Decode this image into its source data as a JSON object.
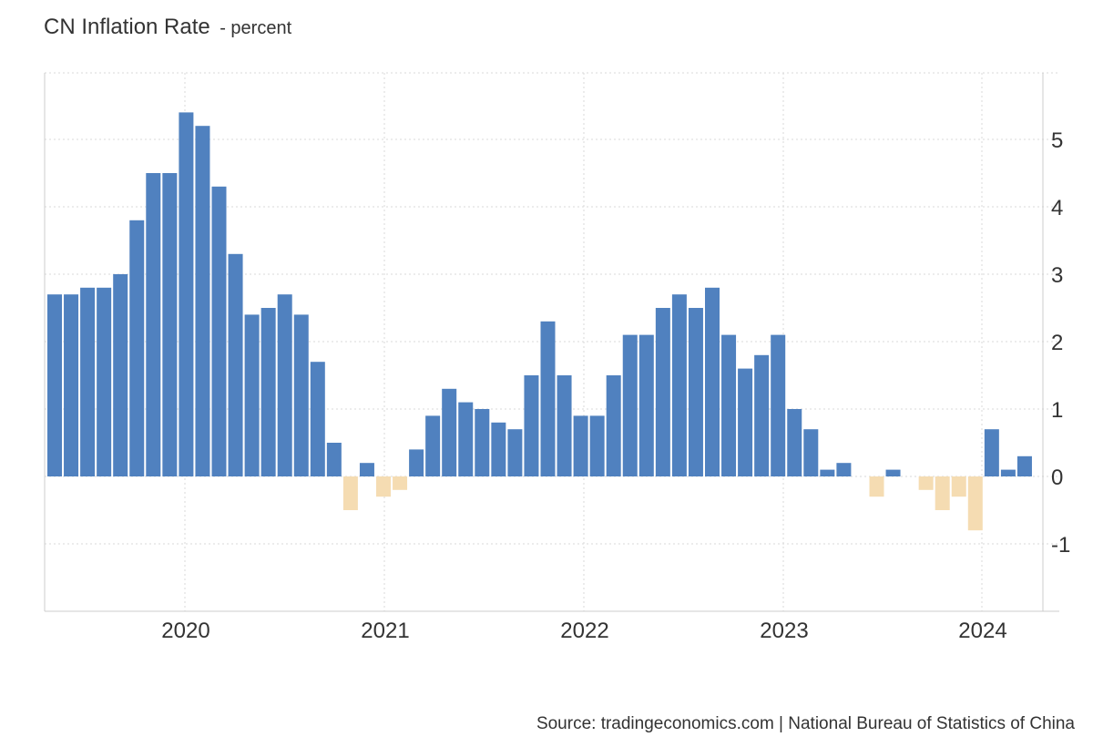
{
  "header": {
    "title": "CN Inflation Rate",
    "subtitle": "- percent"
  },
  "footer": {
    "source": "Source: tradingeconomics.com | National Bureau of Statistics of China"
  },
  "colors": {
    "positive": "#5081bf",
    "negative": "#f5dcb2",
    "grid": "#d9d9d9",
    "axis": "#cccccc"
  },
  "chart_data": {
    "type": "bar",
    "title": "CN Inflation Rate",
    "subtitle": "- percent",
    "xlabel": "",
    "ylabel": "",
    "ylim": [
      -2,
      6
    ],
    "y_ticks": [
      5,
      4,
      3,
      2,
      1,
      0,
      -1
    ],
    "x_tick_labels": [
      "2020",
      "2021",
      "2022",
      "2023",
      "2024"
    ],
    "grid": true,
    "y_axis_position": "right",
    "categories": [
      "2019-05",
      "2019-06",
      "2019-07",
      "2019-08",
      "2019-09",
      "2019-10",
      "2019-11",
      "2019-12",
      "2020-01",
      "2020-02",
      "2020-03",
      "2020-04",
      "2020-05",
      "2020-06",
      "2020-07",
      "2020-08",
      "2020-09",
      "2020-10",
      "2020-11",
      "2020-12",
      "2021-01",
      "2021-02",
      "2021-03",
      "2021-04",
      "2021-05",
      "2021-06",
      "2021-07",
      "2021-08",
      "2021-09",
      "2021-10",
      "2021-11",
      "2021-12",
      "2022-01",
      "2022-02",
      "2022-03",
      "2022-04",
      "2022-05",
      "2022-06",
      "2022-07",
      "2022-08",
      "2022-09",
      "2022-10",
      "2022-11",
      "2022-12",
      "2023-01",
      "2023-02",
      "2023-03",
      "2023-04",
      "2023-05",
      "2023-06",
      "2023-07",
      "2023-08",
      "2023-09",
      "2023-10",
      "2023-11",
      "2023-12",
      "2024-01",
      "2024-02",
      "2024-03",
      "2024-04"
    ],
    "values": [
      2.7,
      2.7,
      2.8,
      2.8,
      3.0,
      3.8,
      4.5,
      4.5,
      5.4,
      5.2,
      4.3,
      3.3,
      2.4,
      2.5,
      2.7,
      2.4,
      1.7,
      0.5,
      -0.5,
      0.2,
      -0.3,
      -0.2,
      0.4,
      0.9,
      1.3,
      1.1,
      1.0,
      0.8,
      0.7,
      1.5,
      2.3,
      1.5,
      0.9,
      0.9,
      1.5,
      2.1,
      2.1,
      2.5,
      2.7,
      2.5,
      2.8,
      2.1,
      1.6,
      1.8,
      2.1,
      1.0,
      0.7,
      0.1,
      0.2,
      0.0,
      -0.3,
      0.1,
      0.0,
      -0.2,
      -0.5,
      -0.3,
      -0.8,
      0.7,
      0.1,
      0.3
    ]
  }
}
